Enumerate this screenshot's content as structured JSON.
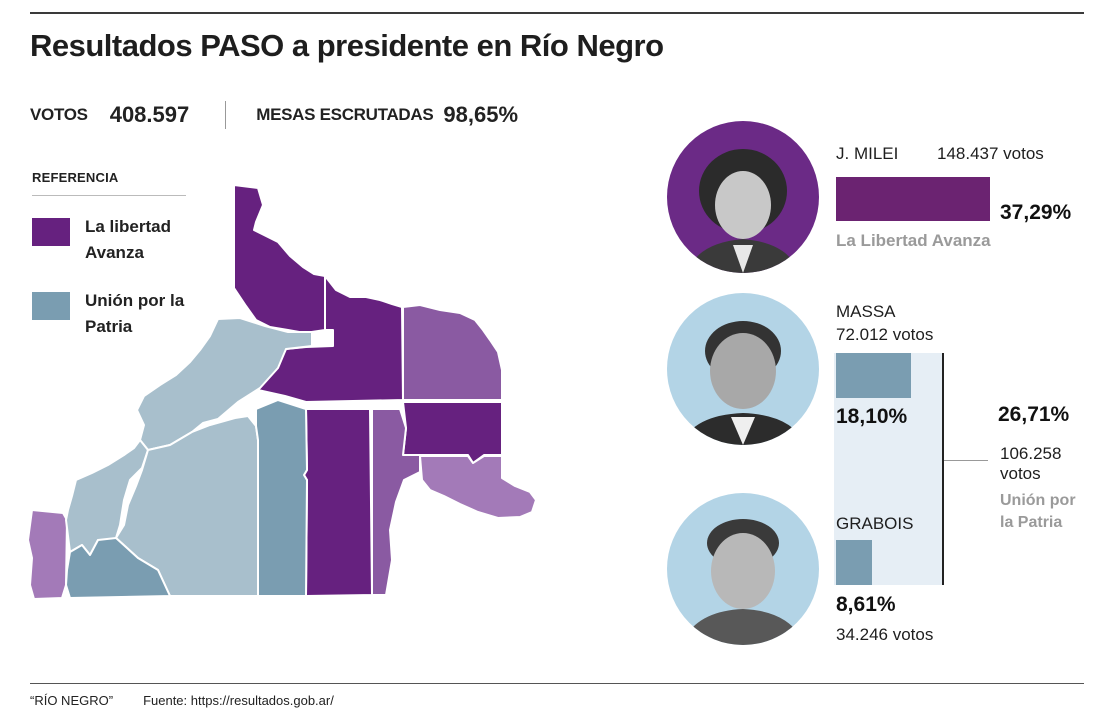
{
  "header": {
    "title": "Resultados PASO a presidente en Río Negro",
    "votes_label": "VOTOS",
    "votes_value": "408.597",
    "mesas_label": "MESAS ESCRUTADAS",
    "mesas_value": "98,65%"
  },
  "legend": {
    "title": "REFERENCIA",
    "items": [
      {
        "label": "La libertad Avanza",
        "color": "#66217f"
      },
      {
        "label": "Unión por la Patria",
        "color": "#7a9db1"
      }
    ]
  },
  "map": {
    "colors": {
      "lla_strong": "#66217f",
      "lla_medium": "#8a5aa2",
      "lla_light": "#a37ab8",
      "up_strong": "#7a9db1",
      "up_light": "#a8bfcc"
    },
    "departments": [
      {
        "winner": "La libertad Avanza",
        "shade": "lla_strong"
      },
      {
        "winner": "La libertad Avanza",
        "shade": "lla_strong"
      },
      {
        "winner": "La libertad Avanza",
        "shade": "lla_medium"
      },
      {
        "winner": "La libertad Avanza",
        "shade": "lla_strong"
      },
      {
        "winner": "La libertad Avanza",
        "shade": "lla_strong"
      },
      {
        "winner": "La libertad Avanza",
        "shade": "lla_medium"
      },
      {
        "winner": "La libertad Avanza",
        "shade": "lla_light"
      },
      {
        "winner": "La libertad Avanza",
        "shade": "lla_light"
      },
      {
        "winner": "Unión por la Patria",
        "shade": "up_light"
      },
      {
        "winner": "Unión por la Patria",
        "shade": "up_light"
      },
      {
        "winner": "Unión por la Patria",
        "shade": "up_light"
      },
      {
        "winner": "Unión por la Patria",
        "shade": "up_strong"
      },
      {
        "winner": "Unión por la Patria",
        "shade": "up_strong"
      }
    ]
  },
  "chart_data": {
    "type": "bar",
    "title": "Resultados PASO a presidente en Río Negro",
    "categories": [
      "J. MILEI",
      "MASSA",
      "GRABOIS"
    ],
    "values": [
      37.29,
      18.1,
      8.61
    ],
    "votes": [
      "148.437 votos",
      "72.012 votos",
      "34.246 votos"
    ],
    "pct_labels": [
      "37,29%",
      "18,10%",
      "8,61%"
    ],
    "parties": [
      "La Libertad Avanza",
      "Unión por la Patria",
      "Unión por la Patria"
    ],
    "colors": [
      "#6b2371",
      "#7a9db1",
      "#7a9db1"
    ],
    "xlim": [
      0,
      40
    ],
    "grouped_total": {
      "party": "Unión por la Patria",
      "pct": 26.71,
      "pct_label": "26,71%",
      "votes_number": "106.258",
      "votes_word": "votos"
    }
  },
  "candidates": [
    {
      "name": "J. MILEI",
      "votes": "148.437 votos",
      "pct": "37,29%",
      "party": "La Libertad Avanza",
      "photo_bg": "#6b2a86"
    },
    {
      "name": "MASSA",
      "votes": "72.012 votos",
      "pct": "18,10%",
      "photo_bg": "#b3d4e6"
    },
    {
      "name": "GRABOIS",
      "votes": "34.246 votos",
      "pct": "8,61%",
      "photo_bg": "#b3d4e6"
    }
  ],
  "union_por_la_patria": {
    "pct": "26,71%",
    "votes_number": "106.258",
    "votes_word": "votos",
    "party_line1": "Unión por",
    "party_line2": "la Patria"
  },
  "footer": {
    "credit": "“RÍO NEGRO”",
    "source": "Fuente: https://resultados.gob.ar/"
  }
}
